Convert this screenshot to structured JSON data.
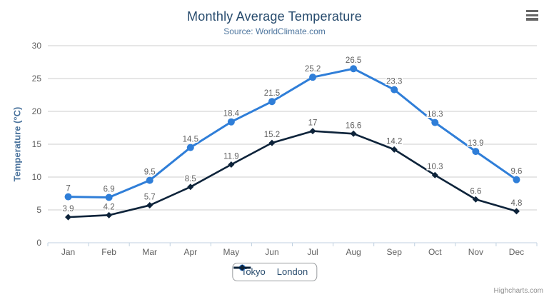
{
  "chart_data": {
    "type": "line",
    "title": "Monthly Average Temperature",
    "subtitle": "Source: WorldClimate.com",
    "xlabel": "",
    "ylabel": "Temperature (°C)",
    "categories": [
      "Jan",
      "Feb",
      "Mar",
      "Apr",
      "May",
      "Jun",
      "Jul",
      "Aug",
      "Sep",
      "Oct",
      "Nov",
      "Dec"
    ],
    "series": [
      {
        "name": "Tokyo",
        "color": "#2f7ed8",
        "marker": "circle",
        "values": [
          7,
          6.9,
          9.5,
          14.5,
          18.4,
          21.5,
          25.2,
          26.5,
          23.3,
          18.3,
          13.9,
          9.6
        ]
      },
      {
        "name": "London",
        "color": "#0d233a",
        "marker": "diamond",
        "values": [
          3.9,
          4.2,
          5.7,
          8.5,
          11.9,
          15.2,
          17,
          16.6,
          14.2,
          10.3,
          6.6,
          4.8
        ]
      }
    ],
    "ylim": [
      0,
      30
    ],
    "ytick_step": 5,
    "grid": true,
    "data_labels": true,
    "legend_position": "bottom-center"
  },
  "style_colors": {
    "title": "#274b6d",
    "subtitle": "#4d759e",
    "axis_title": "#4d759e",
    "axis_labels": "#606060",
    "data_labels": "#606060",
    "grid_line": "#cccccc",
    "axis_line": "#c0d0e0",
    "legend_text": "#274b6d",
    "credits_text": "#909090",
    "menu_icon": "#666666"
  },
  "credits": {
    "label": "Highcharts.com"
  }
}
